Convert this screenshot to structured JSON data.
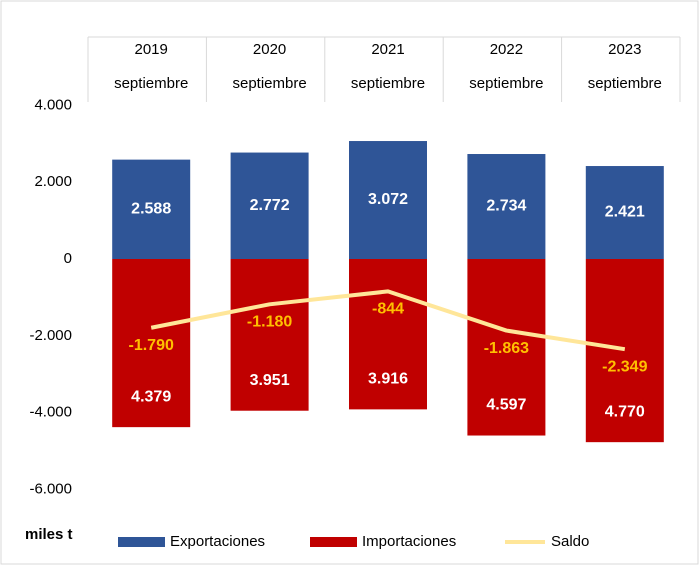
{
  "chart_data": {
    "type": "bar",
    "categories": [
      "2019",
      "2020",
      "2021",
      "2022",
      "2023"
    ],
    "period_labels": [
      "septiembre",
      "septiembre",
      "septiembre",
      "septiembre",
      "septiembre"
    ],
    "series": [
      {
        "name": "Exportaciones",
        "color": "#2f5597",
        "values": [
          2588,
          2772,
          3072,
          2734,
          2421
        ],
        "value_labels": [
          "2.588",
          "2.772",
          "3.072",
          "2.734",
          "2.421"
        ]
      },
      {
        "name": "Importaciones",
        "color": "#c00000",
        "values": [
          -4379,
          -3951,
          -3916,
          -4597,
          -4770
        ],
        "value_labels": [
          "4.379",
          "3.951",
          "3.916",
          "4.597",
          "4.770"
        ]
      },
      {
        "name": "Saldo",
        "type": "line",
        "color": "#ffe699",
        "label_color": "#ffc000",
        "values": [
          -1790,
          -1180,
          -844,
          -1863,
          -2349
        ],
        "value_labels": [
          "-1.790",
          "-1.180",
          "-844",
          "-1.863",
          "-2.349"
        ]
      }
    ],
    "y_unit": "miles t",
    "ylim": [
      -6000,
      6000
    ],
    "yticks": [
      {
        "value": 4000,
        "label": "4.000"
      },
      {
        "value": 2000,
        "label": "2.000"
      },
      0,
      {
        "value": -2000,
        "label": "-2.000"
      },
      {
        "value": -4000,
        "label": "-4.000"
      },
      {
        "value": -6000,
        "label": "-6.000"
      }
    ]
  }
}
